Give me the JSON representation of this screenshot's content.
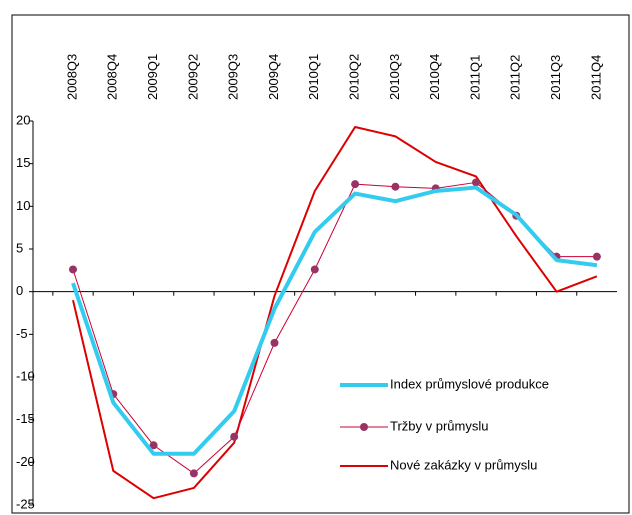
{
  "chart_data": {
    "type": "line",
    "categories": [
      "2008Q3",
      "2008Q4",
      "2009Q1",
      "2009Q2",
      "2009Q3",
      "2009Q4",
      "2010Q1",
      "2010Q2",
      "2010Q3",
      "2010Q4",
      "2011Q1",
      "2011Q2",
      "2011Q3",
      "2011Q4"
    ],
    "series": [
      {
        "name": "Index průmyslové produkce",
        "color": "#33ccee",
        "width": 4,
        "values": [
          1,
          -13,
          -19,
          -19,
          -14,
          -2,
          7,
          11.5,
          10.6,
          11.8,
          12.2,
          9,
          3.7,
          3.1
        ]
      },
      {
        "name": "Tržby v průmyslu",
        "color": "#cc0033",
        "marker_color": "#993366",
        "width": 1,
        "values": [
          2.6,
          -12,
          -18,
          -21.3,
          -17,
          -6,
          2.6,
          12.6,
          12.3,
          12.1,
          12.8,
          8.9,
          4.1,
          4.1
        ]
      },
      {
        "name": "Nové zakázky v průmyslu",
        "color": "#dd0000",
        "width": 2,
        "values": [
          -1,
          -21,
          -24.2,
          -23,
          -17.7,
          -0.5,
          11.8,
          19.3,
          18.2,
          15.2,
          13.5,
          6.5,
          0,
          1.8
        ]
      }
    ],
    "ylim": [
      -25,
      20
    ],
    "yticks": [
      -25,
      -20,
      -15,
      -10,
      -5,
      0,
      5,
      10,
      15,
      20
    ],
    "grid": false,
    "legend": "lower right"
  }
}
